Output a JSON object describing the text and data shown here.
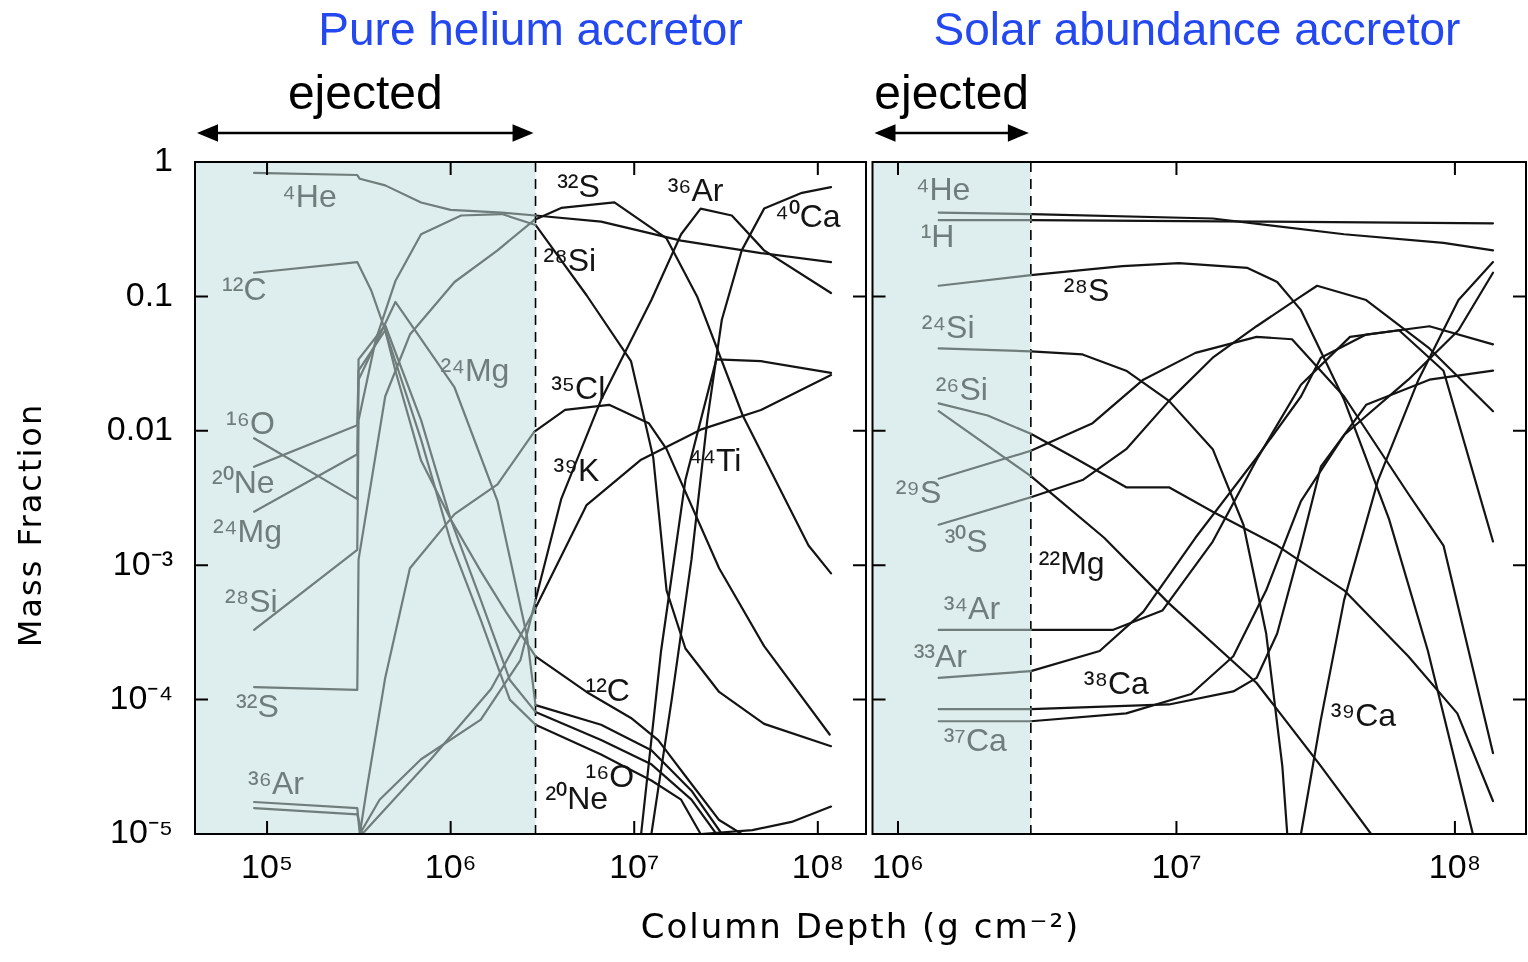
{
  "chart_data": [
    {
      "type": "line",
      "title": "Pure helium accretor",
      "xlabel": "Column Depth (g cm⁻²)",
      "ylabel": "Mass Fraction",
      "log": "xy",
      "xlim": [
        40500,
        183000000
      ],
      "ylim": [
        1e-05,
        1
      ],
      "xticks": [
        {
          "value": 100000,
          "label": "10⁵"
        },
        {
          "value": 1000000,
          "label": "10⁶"
        },
        {
          "value": 10000000,
          "label": "10⁷"
        },
        {
          "value": 100000000,
          "label": "10⁸"
        }
      ],
      "yticks": [
        {
          "value": 1e-05,
          "label": "10⁻⁵"
        },
        {
          "value": 0.0001,
          "label": "10⁻⁴"
        },
        {
          "value": 0.001,
          "label": "10⁻³"
        },
        0.01,
        0.1,
        1
      ],
      "bands": [
        {
          "axis": "x",
          "from": 40500,
          "to": 2900000,
          "label": "ejected",
          "color": "#deeded"
        }
      ],
      "ref_lines": [
        {
          "axis": "x",
          "value": 2900000,
          "line_style": "dashed",
          "color": "#000000"
        }
      ],
      "series": [
        {
          "name": "⁴He",
          "color": "#707d7d",
          "x": [
            85000.0,
            310000.0,
            320000.0,
            440000.0,
            690000.0,
            1000000.0,
            1900000.0,
            2900000.0
          ],
          "values": [
            0.83,
            0.8,
            0.75,
            0.67,
            0.5,
            0.44,
            0.42,
            0.4
          ]
        },
        {
          "name": "¹²C",
          "color": "#707d7d",
          "x": [
            85000.0,
            310000.0,
            370000.0,
            440000.0,
            500000.0,
            690000.0,
            1000000.0,
            1460000.0,
            2000000.0,
            2900000.0
          ],
          "values": [
            0.15,
            0.18,
            0.11,
            0.056,
            0.028,
            0.006,
            0.0022,
            0.0009,
            0.00045,
            0.00021
          ]
        },
        {
          "name": "¹⁶O",
          "color": "#707d7d",
          "x": [
            85000.0,
            310000.0,
            315000.0,
            440000.0,
            690000.0,
            1000000.0,
            1460000.0,
            2100000.0,
            2900000.0
          ],
          "values": [
            0.0088,
            0.0031,
            0.034,
            0.061,
            0.012,
            0.0022,
            0.00055,
            0.00014,
            8.1e-05
          ]
        },
        {
          "name": "²⁰Ne",
          "color": "#707d7d",
          "x": [
            85000.0,
            310000.0,
            315000.0,
            440000.0,
            690000.0,
            1000000.0,
            1460000.0,
            2100000.0,
            2900000.0
          ],
          "values": [
            0.0054,
            0.011,
            0.028,
            0.056,
            0.0086,
            0.0015,
            0.00039,
            0.0001,
            6.5e-05
          ]
        },
        {
          "name": "²⁴Mg",
          "color": "#707d7d",
          "x": [
            85000.0,
            310000.0,
            315000.0,
            500000.0,
            1050000.0,
            1800000.0,
            2600000.0,
            2900000.0
          ],
          "values": [
            0.0025,
            0.0067,
            0.024,
            0.091,
            0.021,
            0.003,
            0.0003,
            9.1e-05
          ]
        },
        {
          "name": "²⁸Si",
          "color": "#707d7d",
          "x": [
            85000.0,
            310000.0,
            315000.0,
            390000.0,
            500000.0,
            690000.0,
            1140000.0,
            1900000.0,
            2900000.0
          ],
          "values": [
            0.00033,
            0.0013,
            0.012,
            0.047,
            0.13,
            0.29,
            0.4,
            0.41,
            0.34
          ]
        },
        {
          "name": "³²S",
          "color": "#707d7d",
          "x": [
            85000.0,
            310000.0,
            315000.0,
            440000.0,
            600000.0,
            1050000.0,
            1800000.0,
            2850000.0
          ],
          "values": [
            0.000124,
            0.000118,
            0.0011,
            0.018,
            0.052,
            0.128,
            0.22,
            0.37
          ]
        },
        {
          "name": "³⁶Ar",
          "color": "#707d7d",
          "x": [
            85000.0,
            310000.0,
            320000.0,
            410000.0,
            690000.0,
            1460000.0,
            2400000.0,
            2900000.0
          ],
          "values": [
            1.73e-05,
            1.56e-05,
            1e-05,
            1.8e-05,
            3.6e-05,
            7.1e-05,
            0.000197,
            0.00055
          ]
        },
        {
          "color": "#707d7d",
          "x": [
            85000.0,
            310000.0,
            330000.0,
            780000.0,
            1660000.0,
            2900000.0
          ],
          "values": [
            1.56e-05,
            1.4e-05,
            1e-05,
            3.6e-05,
            0.00012,
            0.00048
          ]
        },
        {
          "color": "#707d7d",
          "x": [
            320000.0,
            350000.0,
            440000.0,
            600000.0,
            1050000.0,
            1800000.0,
            2850000.0
          ],
          "values": [
            1e-05,
            2.2e-05,
            0.000145,
            0.00095,
            0.0024,
            0.004,
            0.0098
          ]
        },
        {
          "color": "#141414",
          "x": [
            2900000.0,
            6600000.0,
            18000000.0,
            49000000.0,
            118000000.0
          ],
          "values": [
            0.4,
            0.36,
            0.26,
            0.21,
            0.18
          ]
        },
        {
          "name": "¹²C",
          "color": "#141414",
          "x": [
            2900000.0,
            5500000.0,
            9600000.0,
            13500000.0,
            19000000.0,
            29000000.0,
            38500000.0
          ],
          "values": [
            0.00021,
            0.000114,
            7.3e-05,
            5e-05,
            2.7e-05,
            1.27e-05,
            1e-05
          ]
        },
        {
          "name": "¹⁶O",
          "color": "#141414",
          "x": [
            2900000.0,
            6600000.0,
            12400000.0,
            20500000.0,
            28000000.0
          ],
          "values": [
            8.1e-05,
            5e-05,
            3.3e-05,
            1.8e-05,
            1e-05
          ]
        },
        {
          "name": "²⁰Ne",
          "color": "#141414",
          "x": [
            2900000.0,
            6600000.0,
            12400000.0,
            18000000.0,
            23000000.0
          ],
          "values": [
            6.5e-05,
            3.9e-05,
            2.5e-05,
            1.8e-05,
            1e-05
          ]
        },
        {
          "color": "#141414",
          "x": [
            2900000.0,
            6600000.0,
            12400000.0,
            20500000.0,
            30000000.0
          ],
          "values": [
            9.1e-05,
            6.5e-05,
            4.2e-05,
            2.1e-05,
            1e-05
          ]
        },
        {
          "name": "²⁸Si",
          "color": "#141414",
          "x": [
            2900000.0,
            5500000.0,
            9600000.0,
            12700000.0,
            15000000.0,
            19000000.0,
            29000000.0,
            51000000.0,
            118000000.0
          ],
          "values": [
            0.34,
            0.102,
            0.033,
            0.0063,
            0.00065,
            0.00024,
            0.000114,
            6.6e-05,
            4.5e-05
          ]
        },
        {
          "name": "³²S",
          "color": "#141414",
          "x": [
            2850000.0,
            4000000.0,
            7800000.0,
            15000000.0,
            22000000.0,
            39000000.0,
            51000000.0,
            89000000.0,
            118000000.0
          ],
          "values": [
            0.37,
            0.455,
            0.5,
            0.27,
            0.1,
            0.013,
            0.0063,
            0.0014,
            0.00087
          ]
        },
        {
          "name": "³⁶Ar",
          "color": "#141414",
          "x": [
            2900000.0,
            4000000.0,
            6600000.0,
            12400000.0,
            18000000.0,
            23000000.0,
            34000000.0,
            51000000.0,
            118000000.0
          ],
          "values": [
            0.00055,
            0.0031,
            0.017,
            0.094,
            0.29,
            0.45,
            0.4,
            0.22,
            0.106
          ]
        },
        {
          "name": "⁴⁰Ca",
          "color": "#141414",
          "x": [
            12400000.0,
            16000000.0,
            20500000.0,
            25000000.0,
            30000000.0,
            38500000.0,
            51000000.0,
            82000000.0,
            118000000.0
          ],
          "values": [
            1e-05,
            0.0001,
            0.0011,
            0.012,
            0.067,
            0.22,
            0.45,
            0.59,
            0.65
          ]
        },
        {
          "name": "³⁵Cl",
          "color": "#141414",
          "x": [
            2850000.0,
            4200000.0,
            7300000.0,
            12000000.0,
            15000000.0,
            29000000.0,
            51000000.0,
            116000000.0
          ],
          "values": [
            0.0098,
            0.0143,
            0.0156,
            0.0114,
            0.0073,
            0.00095,
            0.00025,
            5.5e-05
          ]
        },
        {
          "name": "³⁹K",
          "color": "#141414",
          "x": [
            2900000.0,
            5500000.0,
            10900000.0,
            23000000.0,
            49000000.0,
            118000000.0
          ],
          "values": [
            0.00048,
            0.0028,
            0.0061,
            0.0102,
            0.0143,
            0.026
          ]
        },
        {
          "name": "⁴⁴Ti",
          "color": "#141414",
          "x": [
            10900000.0,
            14000000.0,
            19000000.0,
            28000000.0,
            49000000.0,
            118000000.0
          ],
          "values": [
            1e-05,
            0.00023,
            0.0043,
            0.034,
            0.033,
            0.027
          ]
        },
        {
          "color": "#141414",
          "x": [
            23000000.0,
            44000000.0,
            72000000.0,
            118000000.0
          ],
          "values": [
            1e-05,
            1.07e-05,
            1.23e-05,
            1.6e-05
          ]
        }
      ]
    },
    {
      "type": "line",
      "title": "Solar abundance accretor",
      "log": "xy",
      "xlim": [
        810000,
        180000000
      ],
      "ylim": [
        1e-05,
        1
      ],
      "tick_labels": "x",
      "xticks": [
        {
          "value": 1000000,
          "label": "10⁶"
        },
        {
          "value": 10000000,
          "label": "10⁷"
        },
        {
          "value": 100000000,
          "label": "10⁸"
        }
      ],
      "yticks": [
        1e-05,
        0.0001,
        0.001,
        0.01,
        0.1,
        1
      ],
      "bands": [
        {
          "axis": "x",
          "from": 810000,
          "to": 3000000,
          "label": "ejected",
          "color": "#deeded"
        }
      ],
      "ref_lines": [
        {
          "axis": "x",
          "value": 3000000,
          "line_style": "dashed",
          "color": "#000000"
        }
      ],
      "series": [
        {
          "name": "⁴He",
          "color": "#707d7d",
          "x": [
            1400000.0,
            3000000.0
          ],
          "values": [
            0.42,
            0.41
          ]
        },
        {
          "name": "¹H",
          "color": "#707d7d",
          "x": [
            1400000.0,
            3000000.0
          ],
          "values": [
            0.37,
            0.37
          ]
        },
        {
          "color": "#141414",
          "x": [
            3000000.0,
            13500000.0,
            40000000.0,
            91000000.0,
            137000000.0
          ],
          "values": [
            0.41,
            0.38,
            0.29,
            0.25,
            0.22
          ]
        },
        {
          "color": "#141414",
          "x": [
            3000000.0,
            20000000.0,
            137000000.0
          ],
          "values": [
            0.37,
            0.36,
            0.35
          ]
        },
        {
          "color": "#707d7d",
          "x": [
            1400000.0,
            3000000.0
          ],
          "values": [
            0.12,
            0.144
          ]
        },
        {
          "name": "²⁸S",
          "color": "#141414",
          "x": [
            3000000.0,
            6400000.0,
            10200000.0,
            18000000.0,
            23000000.0,
            28000000.0,
            40000000.0,
            58000000.0,
            80000000.0,
            116000000.0
          ],
          "values": [
            0.144,
            0.168,
            0.177,
            0.163,
            0.128,
            0.079,
            0.017,
            0.0022,
            0.00023,
            1e-05
          ]
        },
        {
          "name": "²⁴Si",
          "color": "#707d7d",
          "x": [
            1400000.0,
            3000000.0
          ],
          "values": [
            0.041,
            0.039
          ]
        },
        {
          "color": "#141414",
          "x": [
            3000000.0,
            4600000.0,
            6600000.0,
            9400000.0,
            13500000.0,
            17400000.0,
            21000000.0,
            24000000.0,
            25000000.0
          ],
          "values": [
            0.039,
            0.037,
            0.028,
            0.0167,
            0.0073,
            0.002,
            0.00031,
            3.2e-05,
            1e-05
          ]
        },
        {
          "name": "²⁶Si",
          "color": "#707d7d",
          "x": [
            1400000.0,
            2100000.0,
            3000000.0
          ],
          "values": [
            0.016,
            0.013,
            0.0095
          ]
        },
        {
          "color": "#141414",
          "x": [
            3000000.0,
            4300000.0,
            6600000.0,
            9400000.0,
            13500000.0,
            23000000.0,
            40000000.0,
            68000000.0,
            102000000.0,
            137000000.0
          ],
          "values": [
            0.0095,
            0.0063,
            0.0038,
            0.0038,
            0.0025,
            0.0014,
            0.00065,
            0.00021,
            7.9e-05,
            1.76e-05
          ]
        },
        {
          "color": "#707d7d",
          "x": [
            1400000.0,
            3000000.0
          ],
          "values": [
            0.014,
            0.0046
          ]
        },
        {
          "name": "²²Mg",
          "color": "#141414",
          "x": [
            3000000.0,
            5500000.0,
            9400000.0,
            19400000.0,
            33000000.0,
            50000000.0
          ],
          "values": [
            0.0046,
            0.0016,
            0.00052,
            0.000133,
            3.2e-05,
            1e-05
          ]
        },
        {
          "name": "²⁹S",
          "color": "#707d7d",
          "x": [
            1400000.0,
            3000000.0
          ],
          "values": [
            0.0044,
            0.0071
          ]
        },
        {
          "color": "#141414",
          "x": [
            3000000.0,
            5000000.0,
            7600000.0,
            11700000.0,
            19400000.0,
            26000000.0,
            40000000.0,
            68000000.0,
            91000000.0,
            137000000.0
          ],
          "values": [
            0.0071,
            0.0114,
            0.024,
            0.038,
            0.05,
            0.048,
            0.018,
            0.0034,
            0.0014,
            4e-05
          ]
        },
        {
          "name": "³⁰S",
          "color": "#707d7d",
          "x": [
            1400000.0,
            3000000.0
          ],
          "values": [
            0.002,
            0.0032
          ]
        },
        {
          "color": "#141414",
          "x": [
            3000000.0,
            4600000.0,
            6600000.0,
            9400000.0,
            13500000.0,
            19400000.0,
            28000000.0,
            32000000.0,
            48000000.0,
            81000000.0,
            137000000.0
          ],
          "values": [
            0.0032,
            0.0043,
            0.0073,
            0.0167,
            0.035,
            0.06,
            0.1,
            0.12,
            0.094,
            0.041,
            0.014
          ]
        },
        {
          "name": "³⁴Ar",
          "color": "#707d7d",
          "x": [
            1400000.0,
            3000000.0
          ],
          "values": [
            0.00033,
            0.00033
          ]
        },
        {
          "color": "#141414",
          "x": [
            3000000.0,
            5900000.0,
            8900000.0,
            13500000.0,
            19400000.0,
            28000000.0,
            42000000.0,
            63000000.0,
            91000000.0,
            137000000.0
          ],
          "values": [
            0.00033,
            0.00033,
            0.00046,
            0.0015,
            0.0061,
            0.022,
            0.05,
            0.056,
            0.028,
            0.0015
          ]
        },
        {
          "name": "³³Ar",
          "color": "#707d7d",
          "x": [
            1400000.0,
            3000000.0
          ],
          "values": [
            0.000145,
            0.000163
          ]
        },
        {
          "color": "#141414",
          "x": [
            3000000.0,
            5300000.0,
            7600000.0,
            11700000.0,
            19400000.0,
            28000000.0,
            33000000.0,
            48000000.0,
            81000000.0,
            137000000.0
          ],
          "values": [
            0.000163,
            0.00023,
            0.00045,
            0.0016,
            0.0063,
            0.018,
            0.035,
            0.052,
            0.06,
            0.044
          ]
        },
        {
          "color": "#707d7d",
          "x": [
            1400000.0,
            3000000.0
          ],
          "values": [
            8.5e-05,
            8.5e-05
          ]
        },
        {
          "name": "³⁸Ca",
          "color": "#141414",
          "x": [
            3000000.0,
            9400000.0,
            16000000.0,
            19400000.0,
            23000000.0,
            28000000.0,
            33000000.0,
            48000000.0,
            81000000.0,
            137000000.0
          ],
          "values": [
            8.5e-05,
            9.2e-05,
            0.000115,
            0.000145,
            0.00031,
            0.0014,
            0.0054,
            0.0156,
            0.024,
            0.028
          ]
        },
        {
          "name": "³⁷Ca",
          "color": "#707d7d",
          "x": [
            1400000.0,
            3000000.0
          ],
          "values": [
            6.9e-05,
            6.9e-05
          ]
        },
        {
          "color": "#141414",
          "x": [
            3000000.0,
            6600000.0,
            11300000.0,
            16000000.0,
            21000000.0,
            28000000.0,
            40000000.0,
            68000000.0,
            103000000.0,
            137000000.0
          ],
          "values": [
            6.9e-05,
            7.9e-05,
            0.00011,
            0.00021,
            0.00065,
            0.003,
            0.0093,
            0.024,
            0.056,
            0.15
          ]
        },
        {
          "name": "³⁹Ca",
          "color": "#141414",
          "x": [
            28000000.0,
            33000000.0,
            40000000.0,
            53000000.0,
            74000000.0,
            103000000.0,
            137000000.0
          ],
          "values": [
            1e-05,
            7.1e-05,
            0.00055,
            0.0043,
            0.024,
            0.094,
            0.18
          ]
        }
      ]
    }
  ]
}
